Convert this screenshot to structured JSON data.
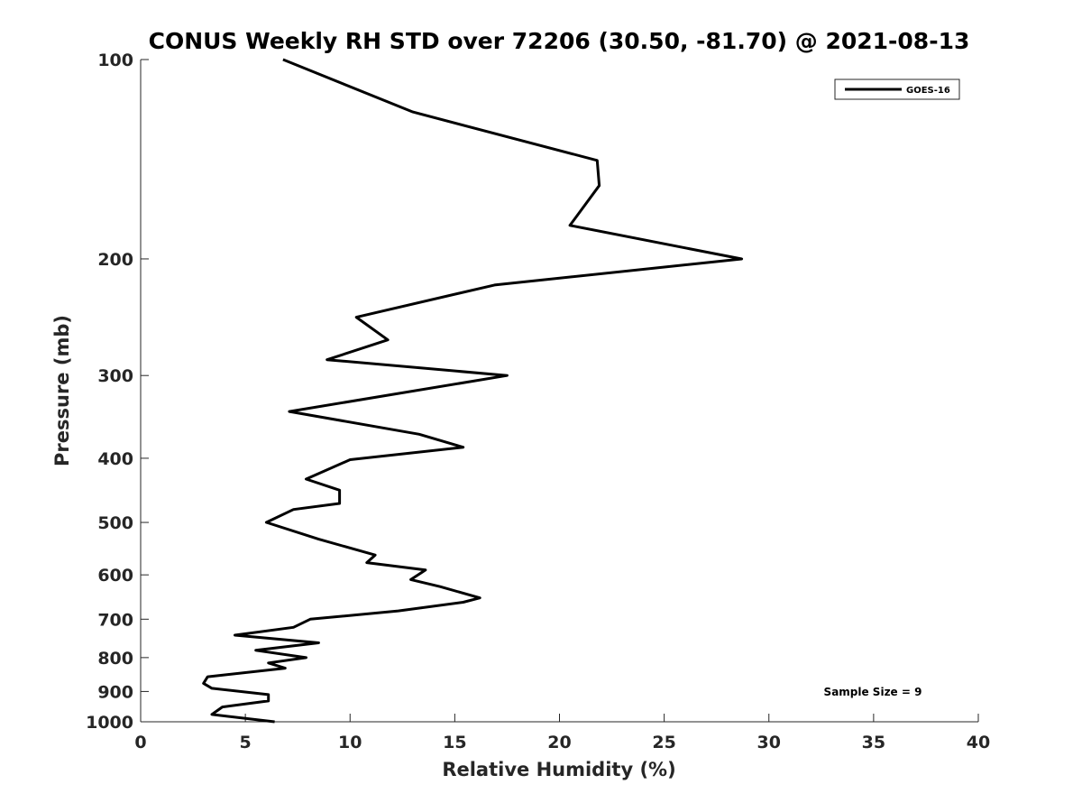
{
  "chart_data": {
    "type": "line",
    "title": "CONUS Weekly RH STD over 72206 (30.50, -81.70) @ 2021-08-13",
    "xlabel": "Relative Humidity (%)",
    "ylabel": "Pressure (mb)",
    "xlim": [
      0,
      40
    ],
    "ylim": [
      1000,
      100
    ],
    "y_scale": "log",
    "y_reversed": true,
    "grid": false,
    "legend_position": "top-right",
    "x_ticks": [
      "0",
      "5",
      "10",
      "15",
      "20",
      "25",
      "30",
      "35",
      "40"
    ],
    "y_ticks": [
      "100",
      "200",
      "300",
      "400",
      "500",
      "600",
      "700",
      "800",
      "900",
      "1000"
    ],
    "series": [
      {
        "name": "GOES-16",
        "color": "#000000",
        "x": [
          6.8,
          13.0,
          21.8,
          21.9,
          20.5,
          28.7,
          16.9,
          10.3,
          11.8,
          8.9,
          17.5,
          7.1,
          13.3,
          15.4,
          10.0,
          7.9,
          9.5,
          9.5,
          7.3,
          6.0,
          8.5,
          11.2,
          10.8,
          13.6,
          12.9,
          14.3,
          16.2,
          15.4,
          12.3,
          8.1,
          7.3,
          4.5,
          8.5,
          5.5,
          7.9,
          6.1,
          6.9,
          3.2,
          3.0,
          3.4,
          6.1,
          6.1,
          3.9,
          3.4,
          6.4
        ],
        "y": [
          100,
          120,
          142,
          155,
          178,
          200,
          219,
          245,
          265,
          284,
          300,
          340,
          368,
          385,
          402,
          430,
          447,
          468,
          478,
          500,
          530,
          560,
          575,
          590,
          610,
          625,
          650,
          660,
          680,
          700,
          720,
          740,
          760,
          780,
          800,
          815,
          830,
          855,
          875,
          890,
          910,
          930,
          950,
          975,
          1000
        ]
      }
    ],
    "annotation": "Sample Size = 9"
  }
}
